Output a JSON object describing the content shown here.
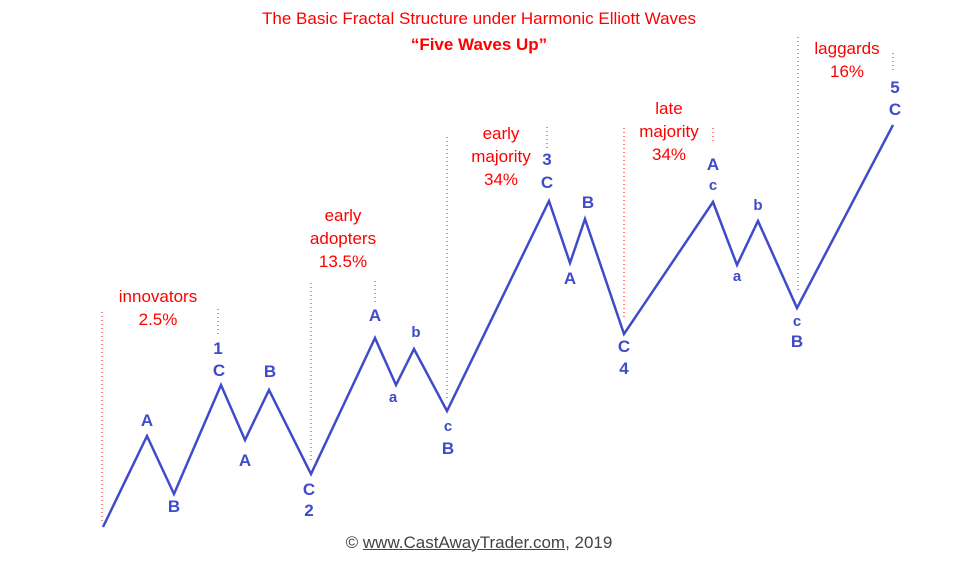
{
  "title": "The Basic Fractal Structure under Harmonic Elliott Waves",
  "subtitle": "“Five Waves Up”",
  "colors": {
    "wave_line": "#3f4bc8",
    "phase_text": "#ff0000",
    "divider": "#ff0000"
  },
  "phases": [
    {
      "line1": "",
      "line2": "innovators",
      "line3": "2.5%"
    },
    {
      "line1": "early",
      "line2": "adopters",
      "line3": "13.5%"
    },
    {
      "line1": "early",
      "line2": "majority",
      "line3": "34%"
    },
    {
      "line1": "late",
      "line2": "majority",
      "line3": "34%"
    },
    {
      "line1": "",
      "line2": "laggards",
      "line3": "16%"
    }
  ],
  "labels": {
    "w1_A": "A",
    "w1_B": "B",
    "w1_num": "1",
    "w1_C": "C",
    "w2_A": "A",
    "w2_B": "B",
    "w2_C": "C",
    "w2_num": "2",
    "w3_A": "A",
    "w3_a": "a",
    "w3_b": "b",
    "w3_c": "c",
    "w3_B": "B",
    "w3_num": "3",
    "w3_C": "C",
    "w4_A": "A",
    "w4_B": "B",
    "w4_C": "C",
    "w4_num": "4",
    "w5_A": "A",
    "w5_c": "c",
    "w5_a": "a",
    "w5_b": "b",
    "w5_cc": "c",
    "w5_B": "B",
    "w5_num": "5",
    "w5_C": "C"
  },
  "copyright": {
    "prefix": "© ",
    "link": "www.CastAwayTrader.com",
    "suffix": ", 2019"
  }
}
